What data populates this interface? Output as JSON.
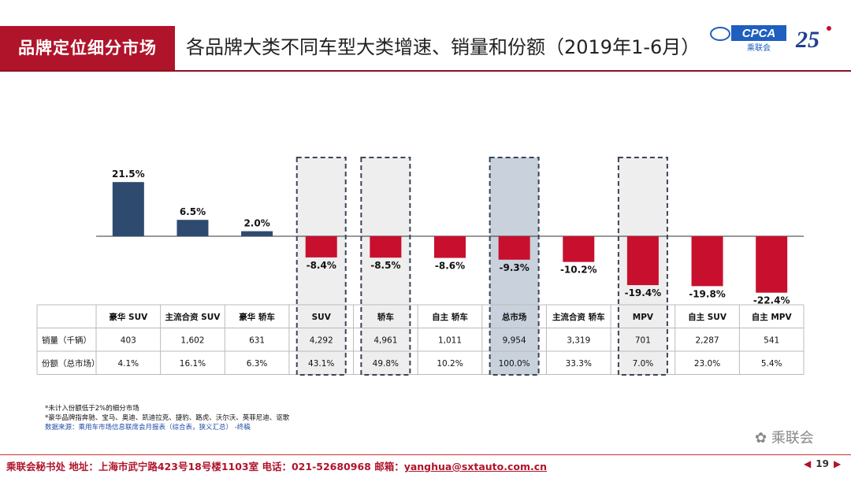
{
  "header": {
    "section_tag": "品牌定位细分市场",
    "title": "各品牌大类不同车型大类增速、销量和份额（2019年1-6月）",
    "logo_cpca_text": "CPCA",
    "logo_cpca_cn": "乘联会",
    "logo_25_text": "25"
  },
  "chart_data": {
    "type": "bar",
    "categories": [
      "豪华 SUV",
      "主流合资 SUV",
      "豪华 轿车",
      "SUV",
      "轿车",
      "自主 轿车",
      "总市场",
      "主流合资 轿车",
      "MPV",
      "自主 SUV",
      "自主 MPV"
    ],
    "values": [
      21.5,
      6.5,
      2.0,
      -8.4,
      -8.5,
      -8.6,
      -9.3,
      -10.2,
      -19.4,
      -19.8,
      -22.4
    ],
    "value_labels": [
      "21.5%",
      "6.5%",
      "2.0%",
      "-8.4%",
      "-8.5%",
      "-8.6%",
      "-9.3%",
      "-10.2%",
      "-19.4%",
      "-19.8%",
      "-22.4%"
    ],
    "unit": "%",
    "positive_color": "#2e4a6e",
    "negative_color": "#c8102e",
    "highlighted": [
      "SUV",
      "轿车",
      "总市场",
      "MPV"
    ]
  },
  "table": {
    "rows": [
      {
        "label": "销量（千辆）",
        "values": [
          "403",
          "1,602",
          "631",
          "4,292",
          "4,961",
          "1,011",
          "9,954",
          "3,319",
          "701",
          "2,287",
          "541"
        ]
      },
      {
        "label": "份额（总市场）",
        "values": [
          "4.1%",
          "16.1%",
          "6.3%",
          "43.1%",
          "49.8%",
          "10.2%",
          "100.0%",
          "33.3%",
          "7.0%",
          "23.0%",
          "5.4%"
        ]
      }
    ]
  },
  "footnotes": {
    "line1": "*未计入份额低于2%的细分市场",
    "line2": "*豪华品牌指奔驰、宝马、奥迪、凯迪拉克、捷豹、路虎、沃尔沃、英菲尼迪、讴歌",
    "line3": "数据来源：乘用车市场信息联席会月报表（综合表，狭义汇总）  -终稿"
  },
  "watermark": "乘联会",
  "footer": {
    "text": "乘联会秘书处   地址：上海市武宁路423号18号楼1103室  电话：021-52680968   邮箱：",
    "email": "yanghua@sxtauto.com.cn",
    "page": "19"
  }
}
